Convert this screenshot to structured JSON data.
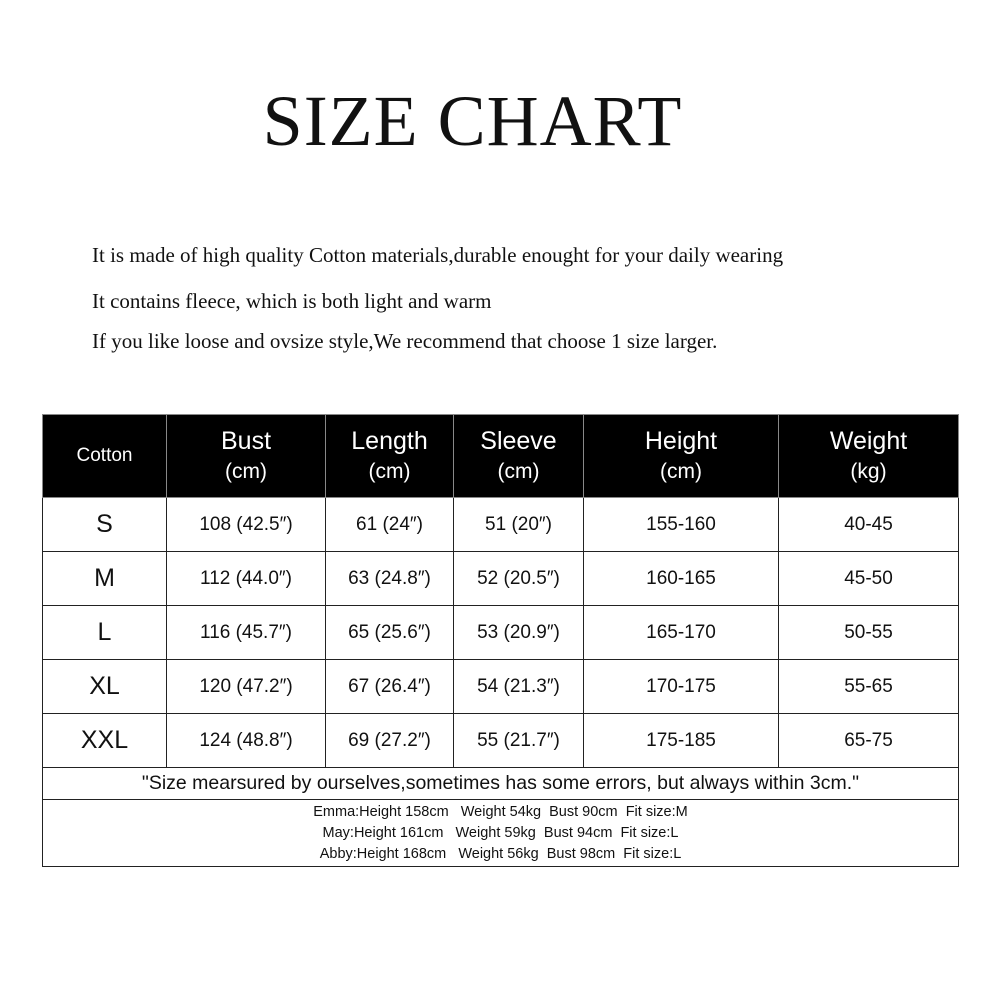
{
  "title": "SIZE CHART",
  "description": [
    "It is made of high quality Cotton materials,durable enought for your daily wearing",
    "It contains fleece, which is both light and warm",
    "If you like loose and ovsize style,We recommend that choose 1 size larger."
  ],
  "table": {
    "corner": "Cotton",
    "headers": [
      {
        "label": "Bust",
        "unit": "(cm)"
      },
      {
        "label": "Length",
        "unit": "(cm)"
      },
      {
        "label": "Sleeve",
        "unit": "(cm)"
      },
      {
        "label": "Height",
        "unit": "(cm)"
      },
      {
        "label": "Weight",
        "unit": "(kg)"
      }
    ],
    "rows": [
      [
        "S",
        "108 (42.5″)",
        "61 (24″)",
        "51 (20″)",
        "155-160",
        "40-45"
      ],
      [
        "M",
        "112 (44.0″)",
        "63 (24.8″)",
        "52 (20.5″)",
        "160-165",
        "45-50"
      ],
      [
        "L",
        "116 (45.7″)",
        "65 (25.6″)",
        "53 (20.9″)",
        "165-170",
        "50-55"
      ],
      [
        "XL",
        "120 (47.2″)",
        "67 (26.4″)",
        "54 (21.3″)",
        "170-175",
        "55-65"
      ],
      [
        "XXL",
        "124 (48.8″)",
        "69 (27.2″)",
        "55 (21.7″)",
        "175-185",
        "65-75"
      ]
    ],
    "note": "\"Size mearsured by ourselves,sometimes has some errors, but always within 3cm.\"",
    "models": [
      "Emma:Height 158cm   Weight 54kg  Bust 90cm  Fit size:M",
      "May:Height 161cm   Weight 59kg  Bust 94cm  Fit size:L",
      "Abby:Height 168cm   Weight 56kg  Bust 98cm  Fit size:L"
    ]
  }
}
